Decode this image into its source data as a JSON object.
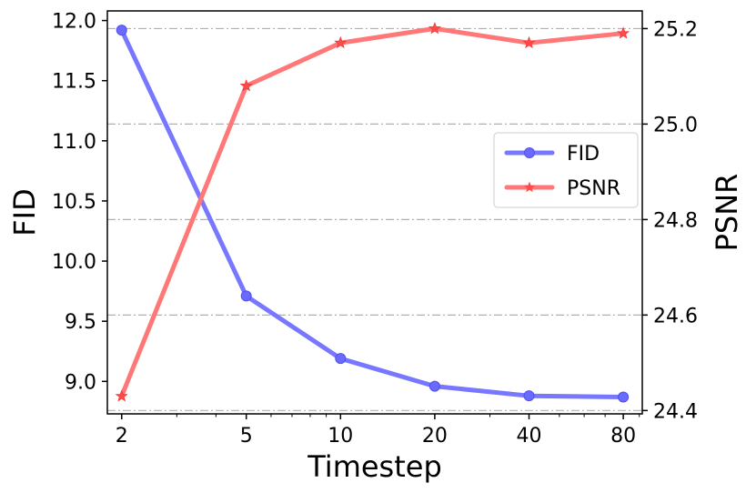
{
  "chart_data": {
    "type": "line",
    "title": "",
    "xlabel": "Timestep",
    "ylabel_left": "FID",
    "ylabel_right": "PSNR",
    "x_scale": "log",
    "x": [
      2,
      5,
      10,
      20,
      40,
      80
    ],
    "x_tick_labels": [
      "2",
      "5",
      "10",
      "20",
      "40",
      "80"
    ],
    "xlim": [
      1.8,
      92
    ],
    "left_axis": {
      "ylim": [
        8.73,
        12.08
      ],
      "ticks": [
        9.0,
        9.5,
        10.0,
        10.5,
        11.0,
        11.5,
        12.0
      ],
      "tick_labels": [
        "9.0",
        "9.5",
        "10.0",
        "10.5",
        "11.0",
        "11.5",
        "12.0"
      ]
    },
    "right_axis": {
      "ylim": [
        24.393,
        25.237
      ],
      "ticks": [
        24.4,
        24.6,
        24.8,
        25.0,
        25.2
      ],
      "tick_labels": [
        "24.4",
        "24.6",
        "24.8",
        "25.0",
        "25.2"
      ]
    },
    "series": [
      {
        "name": "FID",
        "axis": "left",
        "color": "#7777ff",
        "marker": "circle",
        "values": [
          11.92,
          9.71,
          9.19,
          8.96,
          8.88,
          8.87
        ]
      },
      {
        "name": "PSNR",
        "axis": "right",
        "color": "#ff7777",
        "marker": "star",
        "values": [
          24.43,
          25.08,
          25.17,
          25.2,
          25.17,
          25.19
        ]
      }
    ],
    "grid": "horizontal dash-dot at right-axis ticks",
    "legend_position": "center-right"
  }
}
